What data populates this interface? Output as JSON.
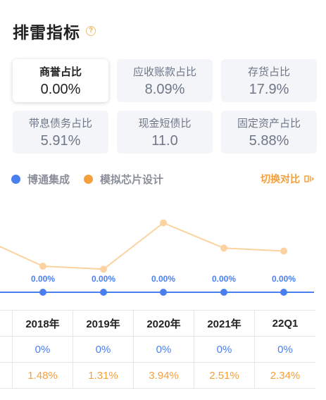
{
  "header": {
    "title": "排雷指标",
    "help_icon": "question-circle-icon"
  },
  "cards": [
    {
      "label": "商誉占比",
      "value": "0.00%",
      "active": true
    },
    {
      "label": "应收账款占比",
      "value": "8.09%",
      "active": false
    },
    {
      "label": "存货占比",
      "value": "17.9%",
      "active": false
    },
    {
      "label": "带息债务占比",
      "value": "5.91%",
      "active": false
    },
    {
      "label": "现金短债比",
      "value": "11.0",
      "active": false
    },
    {
      "label": "固定资产占比",
      "value": "5.88%",
      "active": false
    }
  ],
  "legend": {
    "items": [
      {
        "name": "博通集成",
        "color": "#4a7ff0"
      },
      {
        "name": "模拟芯片设计",
        "color": "#f5a03c"
      }
    ],
    "switch_label": "切换对比",
    "switch_icon": "swap-icon"
  },
  "chart_data": {
    "type": "line",
    "x": [
      "2018年",
      "2019年",
      "2020年",
      "2021年",
      "22Q1"
    ],
    "series": [
      {
        "name": "博通集成",
        "values": [
          0,
          0,
          0,
          0,
          0
        ],
        "labels": [
          "0.00%",
          "0.00%",
          "0.00%",
          "0.00%",
          "0.00%"
        ],
        "color": "#4a7ff0"
      },
      {
        "name": "模拟芯片设计",
        "values": [
          1.48,
          1.31,
          3.94,
          2.51,
          2.34
        ],
        "color": "#fcd3a0"
      }
    ],
    "ylim": [
      0,
      5
    ],
    "grid": false
  },
  "table": {
    "headers": [
      "2018年",
      "2019年",
      "2020年",
      "2021年",
      "22Q1"
    ],
    "rows": [
      [
        "0%",
        "0%",
        "0%",
        "0%",
        "0%"
      ],
      [
        "1.48%",
        "1.31%",
        "3.94%",
        "2.51%",
        "2.34%"
      ]
    ]
  }
}
